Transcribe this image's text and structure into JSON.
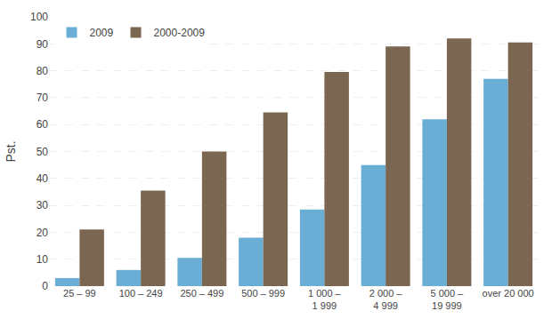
{
  "chart_data": {
    "type": "bar",
    "categories": [
      "25 – 99",
      "100 – 249",
      "250 – 499",
      "500 – 999",
      "1 000 –\n1 999",
      "2 000 –\n4 999",
      "5 000 –\n19 999",
      "over 20 000"
    ],
    "series": [
      {
        "name": "2009",
        "color": "#6aaed6",
        "values": [
          3,
          6,
          10.5,
          18,
          28.5,
          45,
          62,
          77
        ]
      },
      {
        "name": "2000-2009",
        "color": "#7B6652",
        "values": [
          21,
          35.5,
          50,
          64.5,
          79.5,
          89,
          92,
          90.5
        ]
      }
    ],
    "ylabel": "Pst.",
    "ylim": [
      0,
      100
    ],
    "yticks": [
      0,
      10,
      20,
      30,
      40,
      50,
      60,
      70,
      80,
      90,
      100
    ],
    "grid": true,
    "legend": "upper left"
  }
}
